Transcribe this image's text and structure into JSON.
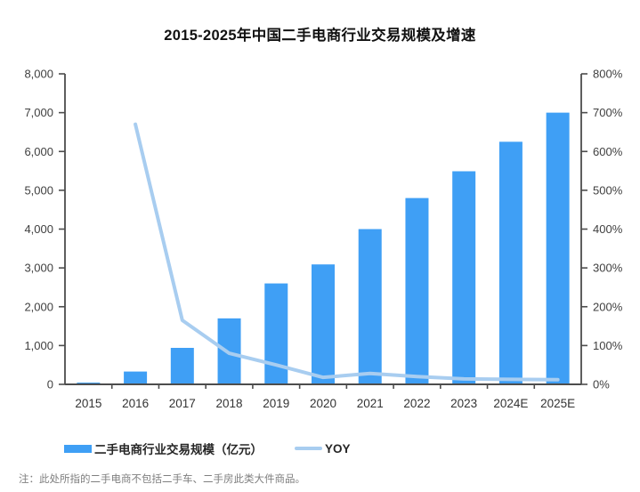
{
  "footnote": "注：此处所指的二手电商不包括二手车、二手房此类大件商品。",
  "chart_data": {
    "type": "bar+line-combo",
    "title": "2015-2025年中国二手电商行业交易规模及增速",
    "categories": [
      "2015",
      "2016",
      "2017",
      "2018",
      "2019",
      "2020",
      "2021",
      "2022",
      "2023",
      "2024E",
      "2025E"
    ],
    "series": [
      {
        "name": "二手电商行业交易规模（亿元）",
        "type": "bar",
        "axis": "left",
        "color": "#3F9FF5",
        "values": [
          45,
          330,
          940,
          1700,
          2600,
          3090,
          4000,
          4800,
          5490,
          6250,
          7000
        ]
      },
      {
        "name": "YOY",
        "type": "line",
        "axis": "right",
        "color": "#A8CDF0",
        "values": [
          null,
          670,
          165,
          80,
          50,
          18,
          28,
          20,
          14,
          13,
          12
        ]
      }
    ],
    "left_axis": {
      "min": 0,
      "max": 8000,
      "step": 1000,
      "tick_labels": [
        "0",
        "1,000",
        "2,000",
        "3,000",
        "4,000",
        "5,000",
        "6,000",
        "7,000",
        "8,000"
      ]
    },
    "right_axis": {
      "min": 0,
      "max": 800,
      "step": 100,
      "unit": "%",
      "tick_labels": [
        "0%",
        "100%",
        "200%",
        "300%",
        "400%",
        "500%",
        "600%",
        "700%",
        "800%"
      ]
    },
    "grid": "off",
    "legend_position": "bottom",
    "axis_color": "#4d4d4d",
    "tick_label_color": "#3f3f3f",
    "x_label_color": "#333333"
  }
}
